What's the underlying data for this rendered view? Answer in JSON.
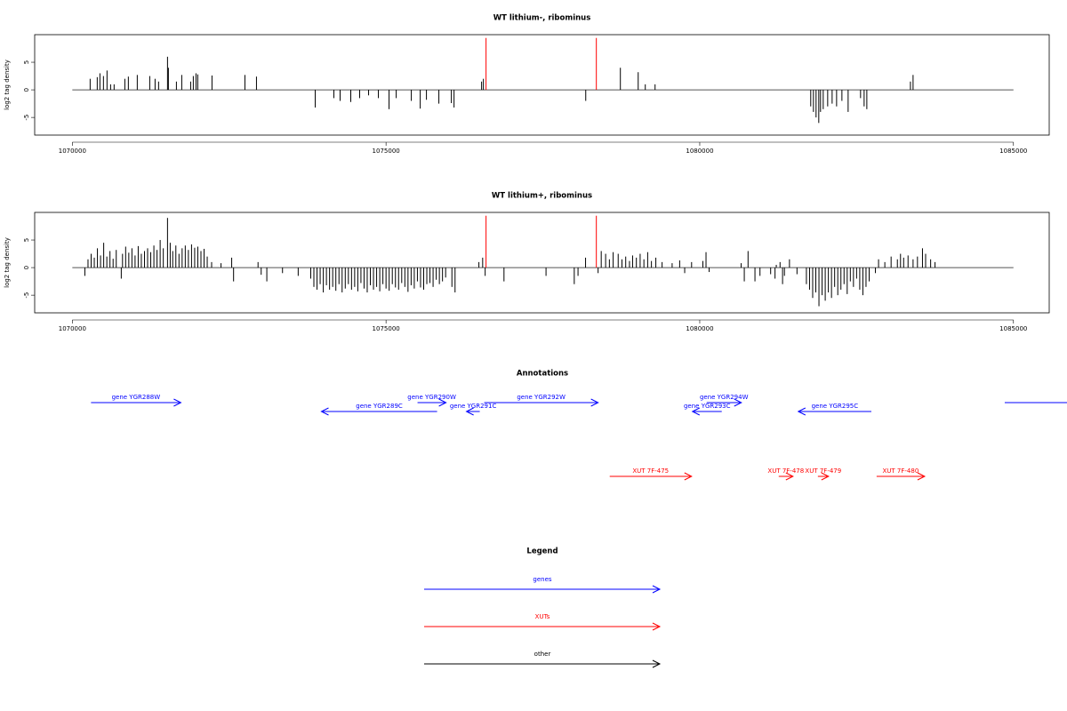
{
  "chart_data": [
    {
      "type": "bar",
      "title": "WT lithium-, ribominus",
      "ylabel": "log2 tag density",
      "xlim": [
        1069400,
        1085570
      ],
      "xticks": [
        1070000,
        1075000,
        1080000,
        1085000
      ],
      "ylim": [
        -8.2,
        10
      ],
      "yticks": [
        -5,
        0,
        5
      ],
      "series": [
        {
          "color": "#000000",
          "x": [
            1070284,
            1070397,
            1070440,
            1070496,
            1070553,
            1070610,
            1070666,
            1070837,
            1070893,
            1071035,
            1071234,
            1071319,
            1071375,
            1071517,
            1071531,
            1071659,
            1071744,
            1071886,
            1071928,
            1071971,
            1071999,
            1072226,
            1072751,
            1072935,
            1073871,
            1074169,
            1074268,
            1074438,
            1074580,
            1074722,
            1074878,
            1075048,
            1075162,
            1075403,
            1075545,
            1075644,
            1075842,
            1076041,
            1076084,
            1076523,
            1076552,
            1078183,
            1078735,
            1079019,
            1079132,
            1079288,
            1081769,
            1081812,
            1081854,
            1081897,
            1081925,
            1081968,
            1082039,
            1082110,
            1082181,
            1082266,
            1082365,
            1082563,
            1082620,
            1082663,
            1083358,
            1083400
          ],
          "values": [
            2,
            2.3,
            3,
            2.5,
            3.5,
            1,
            1,
            2,
            2.4,
            2.7,
            2.5,
            2,
            1.5,
            6,
            4,
            1.5,
            2.7,
            1.5,
            2.5,
            3,
            2.8,
            2.6,
            2.7,
            2.4,
            -3.2,
            -1.5,
            -2,
            -2.2,
            -1.5,
            -1,
            -1.5,
            -3.5,
            -1.5,
            -2,
            -3.4,
            -1.8,
            -2.5,
            -2.4,
            -3.2,
            1.5,
            2,
            -2,
            4,
            3.2,
            1,
            1,
            -3,
            -4,
            -5,
            -6,
            -4,
            -3.5,
            -3,
            -2.5,
            -3,
            -2,
            -4,
            -1.5,
            -3,
            -3.5,
            1.5,
            2.7
          ]
        },
        {
          "color": "#ff0000",
          "x": [
            1076594,
            1078352
          ],
          "values": [
            9.4,
            9.4
          ]
        }
      ]
    },
    {
      "type": "bar",
      "title": "WT lithium+, ribominus",
      "ylabel": "log2 tag density",
      "xlim": [
        1069400,
        1085570
      ],
      "xticks": [
        1070000,
        1075000,
        1080000,
        1085000
      ],
      "ylim": [
        -8.2,
        10
      ],
      "yticks": [
        -5,
        0,
        5
      ],
      "series": [
        {
          "color": "#000000",
          "x": [
            1070200,
            1070250,
            1070300,
            1070350,
            1070400,
            1070450,
            1070500,
            1070550,
            1070600,
            1070650,
            1070700,
            1070780,
            1070800,
            1070850,
            1070900,
            1070950,
            1071000,
            1071050,
            1071100,
            1071150,
            1071200,
            1071250,
            1071300,
            1071350,
            1071400,
            1071450,
            1071517,
            1071560,
            1071600,
            1071650,
            1071700,
            1071750,
            1071800,
            1071850,
            1071900,
            1071950,
            1072000,
            1072050,
            1072100,
            1072150,
            1072220,
            1072370,
            1072540,
            1072570,
            1072960,
            1073010,
            1073100,
            1073350,
            1073600,
            1073800,
            1073850,
            1073900,
            1073950,
            1074000,
            1074050,
            1074100,
            1074150,
            1074200,
            1074250,
            1074300,
            1074350,
            1074400,
            1074450,
            1074500,
            1074550,
            1074600,
            1074650,
            1074700,
            1074750,
            1074800,
            1074850,
            1074900,
            1074950,
            1075000,
            1075050,
            1075100,
            1075150,
            1075200,
            1075250,
            1075300,
            1075350,
            1075400,
            1075450,
            1075500,
            1075550,
            1075600,
            1075650,
            1075700,
            1075750,
            1075800,
            1075850,
            1075900,
            1075950,
            1076050,
            1076100,
            1076480,
            1076540,
            1076580,
            1076880,
            1077550,
            1078000,
            1078060,
            1078180,
            1078380,
            1078430,
            1078500,
            1078560,
            1078620,
            1078700,
            1078760,
            1078820,
            1078880,
            1078930,
            1078990,
            1079050,
            1079110,
            1079170,
            1079230,
            1079300,
            1079400,
            1079560,
            1079680,
            1079760,
            1079870,
            1080050,
            1080100,
            1080150,
            1080660,
            1080710,
            1080770,
            1080880,
            1080960,
            1081130,
            1081200,
            1081220,
            1081280,
            1081320,
            1081350,
            1081430,
            1081550,
            1081700,
            1081750,
            1081800,
            1081850,
            1081900,
            1081950,
            1082000,
            1082050,
            1082100,
            1082150,
            1082200,
            1082250,
            1082300,
            1082350,
            1082400,
            1082450,
            1082500,
            1082550,
            1082600,
            1082650,
            1082700,
            1082800,
            1082850,
            1082950,
            1083050,
            1083150,
            1083200,
            1083250,
            1083320,
            1083400,
            1083470,
            1083550,
            1083600,
            1083680,
            1083750
          ],
          "values": [
            -1.5,
            1.5,
            2.5,
            1.8,
            3.5,
            2.2,
            4.5,
            2,
            3,
            1.6,
            3.2,
            -2,
            2.5,
            3.8,
            2.7,
            3.5,
            2.2,
            3.9,
            2.5,
            3,
            3.5,
            2.8,
            4,
            3.2,
            5,
            3.5,
            9,
            4.5,
            3,
            4,
            2.5,
            3.5,
            4,
            3.2,
            4.2,
            3.6,
            3.8,
            3,
            3.4,
            2,
            1,
            0.8,
            1.8,
            -2.5,
            1,
            -1.3,
            -2.5,
            -1,
            -1.5,
            -2,
            -3.5,
            -4,
            -3,
            -4.5,
            -3.2,
            -4,
            -3.5,
            -4.2,
            -3,
            -4.5,
            -3.8,
            -3,
            -4,
            -3.5,
            -4.3,
            -2.8,
            -3.8,
            -4.5,
            -3.2,
            -4,
            -3.5,
            -4.3,
            -3,
            -3.8,
            -4.2,
            -3,
            -3.6,
            -4,
            -2.8,
            -3.5,
            -4.4,
            -3.2,
            -3.8,
            -2.5,
            -3.6,
            -4,
            -3,
            -2.8,
            -3.5,
            -2.2,
            -3,
            -2.5,
            -1.8,
            -3.5,
            -4.5,
            1,
            1.8,
            -1.5,
            -2.5,
            -1.5,
            -3,
            -1.5,
            1.8,
            -1,
            3,
            2.5,
            1.5,
            2.8,
            2.5,
            1.5,
            2,
            1.2,
            2.2,
            1.8,
            2.5,
            1.5,
            2.8,
            1.2,
            1.8,
            1,
            0.8,
            1.3,
            -1,
            1,
            1.2,
            2.8,
            -0.8,
            0.8,
            -2.5,
            3,
            -2.5,
            -1.5,
            -1.2,
            -2,
            0.5,
            1,
            -3,
            -1.5,
            1.5,
            -1.2,
            -3,
            -4,
            -5.5,
            -4.5,
            -7,
            -5,
            -6,
            -4.5,
            -5.5,
            -3.5,
            -5,
            -4,
            -3,
            -4.8,
            -2.5,
            -3.5,
            -2,
            -4,
            -5,
            -3.5,
            -2.5,
            -1,
            1.5,
            1,
            2,
            1.5,
            2.5,
            1.8,
            2.2,
            1.5,
            2,
            3.5,
            2.5,
            1.5,
            1
          ]
        },
        {
          "color": "#ff0000",
          "x": [
            1076594,
            1078352
          ],
          "values": [
            9.4,
            9.4
          ]
        }
      ]
    }
  ],
  "annotations": {
    "title": "Annotations",
    "genes": {
      "color": "#0000ff",
      "features": [
        {
          "label": "gene YGR288W",
          "start": 1070298,
          "end": 1071730
        },
        {
          "label": "gene YGR289C",
          "start": 1075814,
          "end": 1073970
        },
        {
          "label": "gene YGR290W",
          "start": 1075502,
          "end": 1075956
        },
        {
          "label": "gene YGR291C",
          "start": 1076494,
          "end": 1076282
        },
        {
          "label": "gene YGR292W",
          "start": 1076565,
          "end": 1078380
        },
        {
          "label": "gene YGR293C",
          "start": 1080351,
          "end": 1079884
        },
        {
          "label": "gene YGR294W",
          "start": 1080110,
          "end": 1080663
        },
        {
          "label": "gene YGR295C",
          "start": 1082735,
          "end": 1081571
        },
        {
          "label": null,
          "start": 1084861,
          "end": 1086000
        }
      ]
    },
    "xuts": {
      "color": "#ff0000",
      "features": [
        {
          "label": "XUT 7F-475",
          "start": 1078565,
          "end": 1079870
        },
        {
          "label": "XUT 7F-478",
          "start": 1081259,
          "end": 1081486
        },
        {
          "label": "XUT 7F-479",
          "start": 1081883,
          "end": 1082053
        },
        {
          "label": "XUT 7F-480",
          "start": 1082819,
          "end": 1083585
        }
      ]
    }
  },
  "legend": {
    "title": "Legend",
    "items": [
      {
        "label": "genes",
        "color": "#0000ff"
      },
      {
        "label": "XUTs",
        "color": "#ff0000"
      },
      {
        "label": "other",
        "color": "#000000"
      }
    ]
  }
}
